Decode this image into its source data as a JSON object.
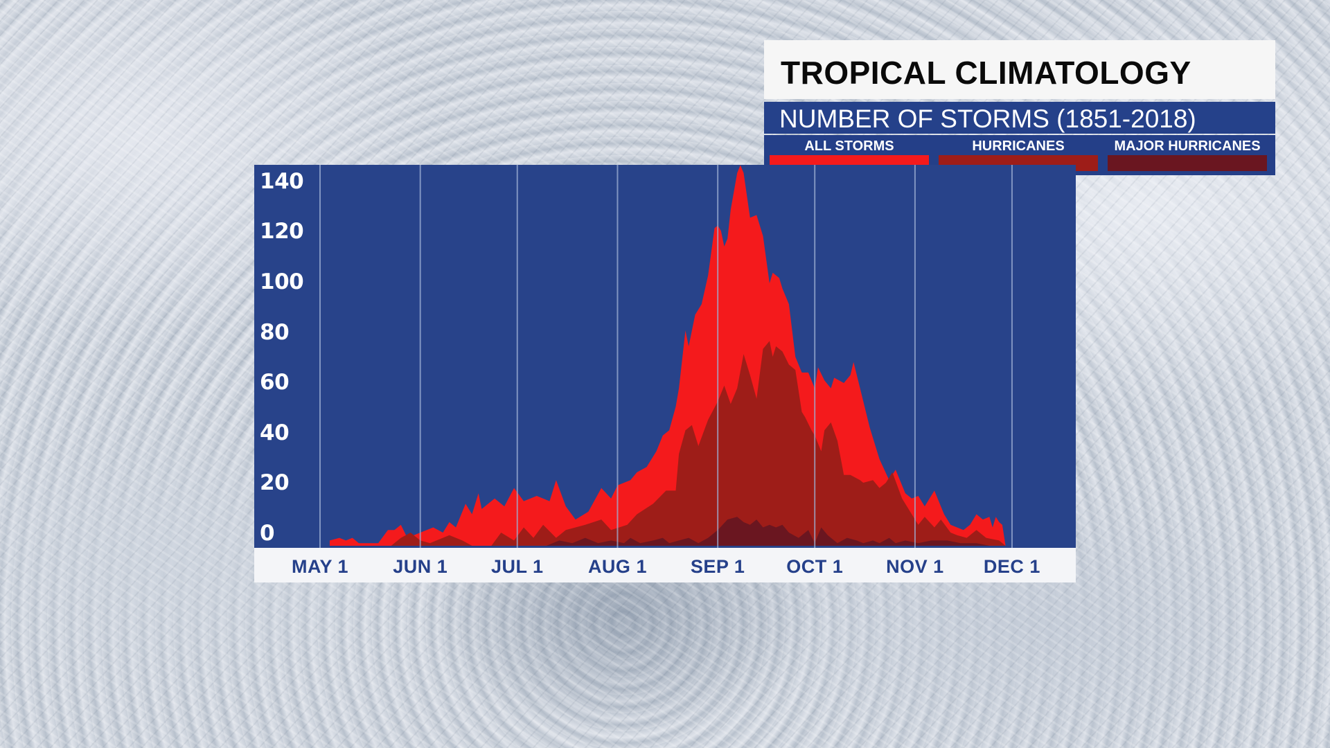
{
  "header": {
    "title": "TROPICAL CLIMATOLOGY",
    "subtitle": "NUMBER OF STORMS (1851-2018)"
  },
  "legend": [
    {
      "label": "ALL STORMS",
      "color": "#f41a1c"
    },
    {
      "label": "HURRICANES",
      "color": "#9e1d18"
    },
    {
      "label": "MAJOR HURRICANES",
      "color": "#6a1620"
    }
  ],
  "colors": {
    "plot_bg": "#28438a",
    "gridline": "#9fb0d4",
    "axis_text": "#25408a"
  },
  "chart_data": {
    "type": "area",
    "title": "TROPICAL CLIMATOLOGY",
    "subtitle": "NUMBER OF STORMS (1851-2018)",
    "xlabel": "",
    "ylabel": "",
    "ylim": [
      0,
      145
    ],
    "yticks": [
      "0",
      "20",
      "40",
      "60",
      "80",
      "100",
      "120",
      "140"
    ],
    "xticks": [
      "MAY 1",
      "JUN 1",
      "JUL 1",
      "AUG 1",
      "SEP 1",
      "OCT 1",
      "NOV 1",
      "DEC 1"
    ],
    "xtick_days": [
      0,
      31,
      61,
      92,
      123,
      153,
      184,
      214
    ],
    "grid": "vertical",
    "legend_position": "top-right",
    "x_unit": "days since May 1",
    "series": [
      {
        "name": "ALL STORMS",
        "color": "#f41a1c",
        "points": [
          [
            3,
            2
          ],
          [
            6,
            3
          ],
          [
            8,
            2
          ],
          [
            10,
            3
          ],
          [
            12,
            1
          ],
          [
            18,
            1
          ],
          [
            21,
            6
          ],
          [
            23,
            6
          ],
          [
            25,
            8
          ],
          [
            27,
            3
          ],
          [
            31,
            5
          ],
          [
            35,
            7
          ],
          [
            38,
            5
          ],
          [
            40,
            9
          ],
          [
            42,
            7
          ],
          [
            45,
            16
          ],
          [
            47,
            12
          ],
          [
            49,
            20
          ],
          [
            50,
            14
          ],
          [
            54,
            18
          ],
          [
            57,
            15
          ],
          [
            60,
            22
          ],
          [
            63,
            17
          ],
          [
            67,
            19
          ],
          [
            71,
            17
          ],
          [
            73,
            25
          ],
          [
            76,
            15
          ],
          [
            79,
            10
          ],
          [
            83,
            13
          ],
          [
            87,
            22
          ],
          [
            90,
            18
          ],
          [
            92,
            23
          ],
          [
            96,
            25
          ],
          [
            98,
            28
          ],
          [
            101,
            30
          ],
          [
            104,
            36
          ],
          [
            106,
            42
          ],
          [
            108,
            44
          ],
          [
            110,
            53
          ],
          [
            111,
            60
          ],
          [
            113,
            82
          ],
          [
            114,
            76
          ],
          [
            116,
            88
          ],
          [
            118,
            92
          ],
          [
            120,
            103
          ],
          [
            122,
            121
          ],
          [
            123,
            122
          ],
          [
            124,
            120
          ],
          [
            125,
            114
          ],
          [
            126,
            117
          ],
          [
            127,
            128
          ],
          [
            129,
            142
          ],
          [
            130,
            145
          ],
          [
            131,
            142
          ],
          [
            133,
            125
          ],
          [
            135,
            126
          ],
          [
            137,
            118
          ],
          [
            139,
            100
          ],
          [
            140,
            104
          ],
          [
            142,
            102
          ],
          [
            143,
            98
          ],
          [
            145,
            92
          ],
          [
            147,
            72
          ],
          [
            149,
            66
          ],
          [
            151,
            66
          ],
          [
            152,
            63
          ],
          [
            153,
            60
          ],
          [
            154,
            68
          ],
          [
            156,
            63
          ],
          [
            158,
            60
          ],
          [
            159,
            64
          ],
          [
            162,
            62
          ],
          [
            164,
            65
          ],
          [
            165,
            70
          ],
          [
            167,
            60
          ],
          [
            170,
            45
          ],
          [
            173,
            33
          ],
          [
            176,
            25
          ],
          [
            178,
            29
          ],
          [
            181,
            20
          ],
          [
            183,
            18
          ],
          [
            185,
            19
          ],
          [
            187,
            15
          ],
          [
            190,
            21
          ],
          [
            193,
            12
          ],
          [
            195,
            8
          ],
          [
            197,
            7
          ],
          [
            199,
            6
          ],
          [
            201,
            8
          ],
          [
            203,
            12
          ],
          [
            205,
            10
          ],
          [
            207,
            11
          ],
          [
            208,
            7
          ],
          [
            209,
            11
          ],
          [
            210,
            9
          ],
          [
            211,
            8
          ],
          [
            212,
            0
          ]
        ]
      },
      {
        "name": "HURRICANES",
        "color": "#9e1d18",
        "points": [
          [
            22,
            0
          ],
          [
            25,
            3
          ],
          [
            28,
            5
          ],
          [
            31,
            2
          ],
          [
            34,
            1
          ],
          [
            36,
            2
          ],
          [
            40,
            4
          ],
          [
            44,
            2
          ],
          [
            47,
            0
          ],
          [
            53,
            0
          ],
          [
            56,
            5
          ],
          [
            60,
            2
          ],
          [
            63,
            7
          ],
          [
            66,
            3
          ],
          [
            69,
            8
          ],
          [
            73,
            3
          ],
          [
            76,
            6
          ],
          [
            82,
            8
          ],
          [
            87,
            10
          ],
          [
            90,
            6
          ],
          [
            95,
            8
          ],
          [
            98,
            12
          ],
          [
            103,
            16
          ],
          [
            107,
            21
          ],
          [
            110,
            21
          ],
          [
            111,
            35
          ],
          [
            113,
            44
          ],
          [
            115,
            46
          ],
          [
            117,
            38
          ],
          [
            120,
            48
          ],
          [
            123,
            55
          ],
          [
            125,
            61
          ],
          [
            127,
            54
          ],
          [
            129,
            60
          ],
          [
            131,
            73
          ],
          [
            133,
            65
          ],
          [
            135,
            56
          ],
          [
            137,
            75
          ],
          [
            139,
            78
          ],
          [
            140,
            72
          ],
          [
            141,
            76
          ],
          [
            143,
            74
          ],
          [
            145,
            69
          ],
          [
            147,
            67
          ],
          [
            149,
            51
          ],
          [
            150,
            49
          ],
          [
            152,
            44
          ],
          [
            153,
            42
          ],
          [
            155,
            36
          ],
          [
            156,
            44
          ],
          [
            158,
            47
          ],
          [
            160,
            40
          ],
          [
            162,
            27
          ],
          [
            164,
            27
          ],
          [
            167,
            25
          ],
          [
            168,
            24
          ],
          [
            171,
            25
          ],
          [
            173,
            22
          ],
          [
            175,
            24
          ],
          [
            177,
            28
          ],
          [
            180,
            18
          ],
          [
            183,
            12
          ],
          [
            185,
            8
          ],
          [
            187,
            11
          ],
          [
            190,
            7
          ],
          [
            192,
            10
          ],
          [
            195,
            5
          ],
          [
            197,
            4
          ],
          [
            200,
            3
          ],
          [
            203,
            6
          ],
          [
            206,
            3
          ],
          [
            210,
            2
          ],
          [
            212,
            0
          ]
        ]
      },
      {
        "name": "MAJOR HURRICANES",
        "color": "#6a1620",
        "points": [
          [
            70,
            0
          ],
          [
            74,
            2
          ],
          [
            78,
            1
          ],
          [
            82,
            3
          ],
          [
            86,
            1
          ],
          [
            90,
            2
          ],
          [
            94,
            1
          ],
          [
            96,
            3
          ],
          [
            99,
            1
          ],
          [
            103,
            2
          ],
          [
            106,
            3
          ],
          [
            108,
            1
          ],
          [
            111,
            2
          ],
          [
            114,
            3
          ],
          [
            117,
            1
          ],
          [
            120,
            3
          ],
          [
            123,
            6
          ],
          [
            126,
            10
          ],
          [
            129,
            11
          ],
          [
            131,
            9
          ],
          [
            133,
            8
          ],
          [
            135,
            10
          ],
          [
            137,
            7
          ],
          [
            139,
            8
          ],
          [
            141,
            7
          ],
          [
            143,
            8
          ],
          [
            145,
            5
          ],
          [
            148,
            3
          ],
          [
            151,
            6
          ],
          [
            153,
            1
          ],
          [
            155,
            7
          ],
          [
            157,
            4
          ],
          [
            160,
            1
          ],
          [
            163,
            3
          ],
          [
            166,
            2
          ],
          [
            168,
            1
          ],
          [
            171,
            2
          ],
          [
            173,
            1
          ],
          [
            176,
            3
          ],
          [
            178,
            1
          ],
          [
            181,
            2
          ],
          [
            185,
            1
          ],
          [
            189,
            2
          ],
          [
            194,
            2
          ],
          [
            198,
            1
          ],
          [
            203,
            1
          ],
          [
            207,
            0
          ],
          [
            212,
            0
          ]
        ]
      }
    ]
  }
}
